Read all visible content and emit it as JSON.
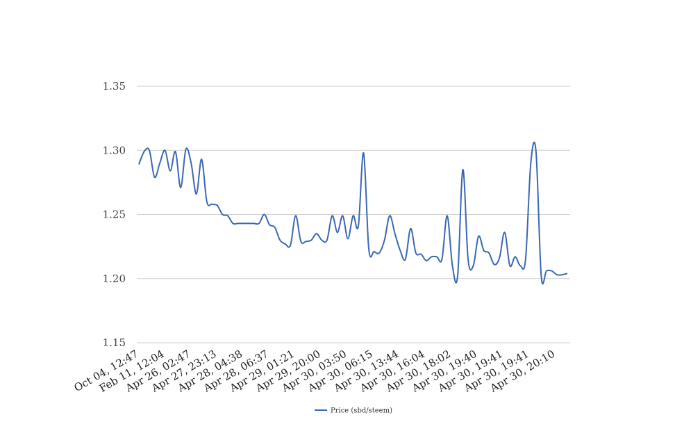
{
  "chart_data": {
    "type": "line",
    "title": "",
    "xlabel": "",
    "ylabel": "",
    "ylim": [
      1.15,
      1.35
    ],
    "yticks": [
      "1.35",
      "1.30",
      "1.25",
      "1.20",
      "1.15"
    ],
    "ytick_values": [
      1.35,
      1.3,
      1.25,
      1.2,
      1.15
    ],
    "xtick_labels": [
      "Oct 04, 12:47",
      "Feb 11, 12:04",
      "Apr 26, 02:47",
      "Apr 27, 23:13",
      "Apr 28, 04:38",
      "Apr 28, 06:37",
      "Apr 29, 01:21",
      "Apr 29, 20:00",
      "Apr 30, 03:50",
      "Apr 30, 06:15",
      "Apr 30, 13:44",
      "Apr 30, 16:04",
      "Apr 30, 18:02",
      "Apr 30, 19:40",
      "Apr 30, 19:41",
      "Apr 30, 19:41",
      "Apr 30, 20:10"
    ],
    "grid": true,
    "legend": {
      "position": "bottom"
    },
    "series": [
      {
        "name": "Price (sbd/steem)",
        "color": "#3a66b5",
        "values": [
          1.289,
          1.299,
          1.3,
          1.279,
          1.29,
          1.3,
          1.284,
          1.299,
          1.271,
          1.301,
          1.29,
          1.266,
          1.293,
          1.26,
          1.258,
          1.257,
          1.25,
          1.249,
          1.243,
          1.243,
          1.243,
          1.243,
          1.243,
          1.243,
          1.25,
          1.242,
          1.24,
          1.23,
          1.227,
          1.226,
          1.249,
          1.229,
          1.229,
          1.23,
          1.235,
          1.23,
          1.23,
          1.249,
          1.236,
          1.249,
          1.231,
          1.249,
          1.241,
          1.298,
          1.223,
          1.221,
          1.22,
          1.23,
          1.249,
          1.235,
          1.222,
          1.215,
          1.239,
          1.22,
          1.219,
          1.214,
          1.217,
          1.217,
          1.215,
          1.249,
          1.21,
          1.202,
          1.285,
          1.215,
          1.21,
          1.233,
          1.222,
          1.22,
          1.211,
          1.216,
          1.236,
          1.21,
          1.217,
          1.21,
          1.215,
          1.29,
          1.299,
          1.202,
          1.206,
          1.206,
          1.203,
          1.203,
          1.204
        ]
      }
    ]
  }
}
